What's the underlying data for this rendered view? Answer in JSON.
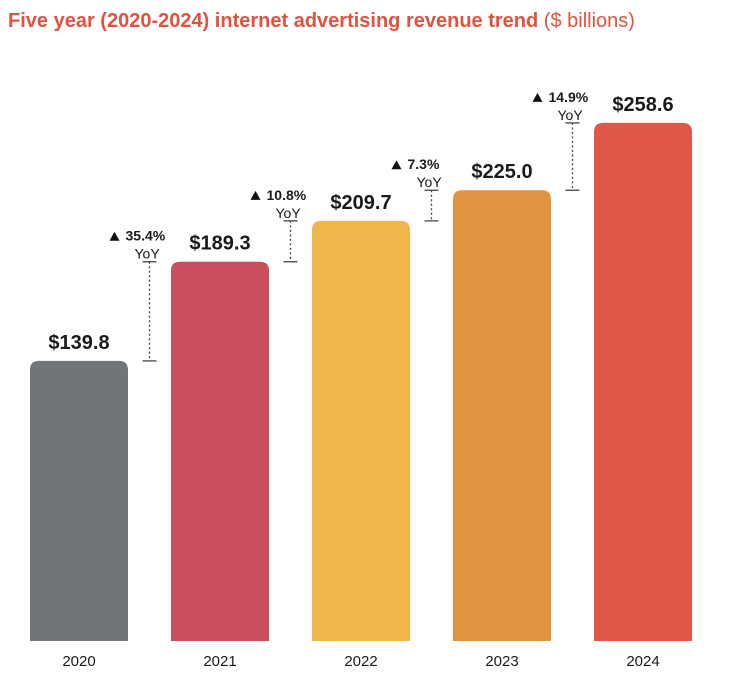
{
  "title": {
    "main": "Five year (2020-2024) internet advertising revenue trend",
    "unit": "($ billions)"
  },
  "chart_data": {
    "type": "bar",
    "title": "Five year (2020-2024) internet advertising revenue trend ($ billions)",
    "categories": [
      "2020",
      "2021",
      "2022",
      "2023",
      "2024"
    ],
    "values": [
      139.8,
      189.3,
      209.7,
      225.0,
      258.6
    ],
    "value_labels": [
      "$139.8",
      "$189.3",
      "$209.7",
      "$225.0",
      "$258.6"
    ],
    "colors": [
      "#727578",
      "#c94f5f",
      "#f0b64c",
      "#e2933f",
      "#df5845"
    ],
    "ylim": [
      0,
      290
    ],
    "grid": false,
    "yoy": [
      {
        "from": "2020",
        "to": "2021",
        "pct": "35.4%",
        "label": "YoY",
        "arrow": "up"
      },
      {
        "from": "2021",
        "to": "2022",
        "pct": "10.8%",
        "label": "YoY",
        "arrow": "up"
      },
      {
        "from": "2022",
        "to": "2023",
        "pct": "7.3%",
        "label": "YoY",
        "arrow": "up"
      },
      {
        "from": "2023",
        "to": "2024",
        "pct": "14.9%",
        "label": "YoY",
        "arrow": "up"
      }
    ]
  }
}
